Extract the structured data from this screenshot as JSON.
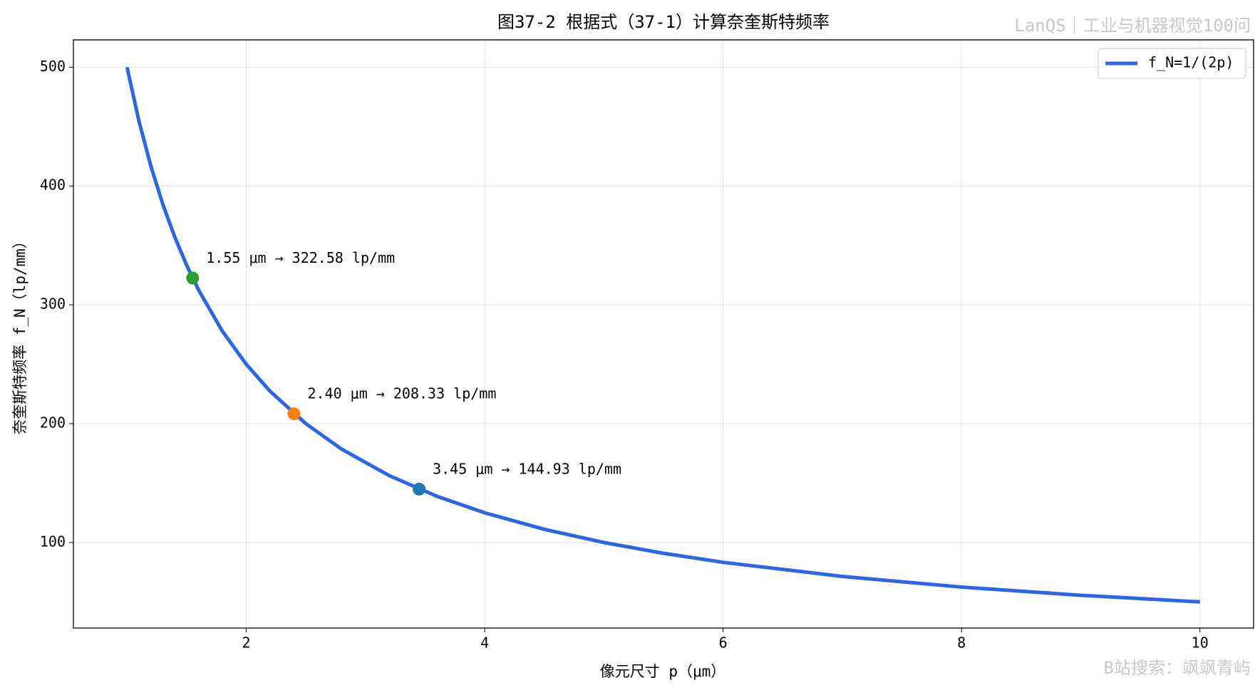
{
  "chart_data": {
    "type": "line",
    "title": "图37-2 根据式（37-1）计算奈奎斯特频率",
    "xlabel": "像元尺寸 p（μm）",
    "ylabel": "奈奎斯特频率 f_N（lp/mm）",
    "xlim": [
      0.55,
      10.45
    ],
    "ylim": [
      28,
      523
    ],
    "xticks": [
      2,
      4,
      6,
      8,
      10
    ],
    "yticks": [
      100,
      200,
      300,
      400,
      500
    ],
    "grid": true,
    "legend": "upper right",
    "series": [
      {
        "name": "f_N=1/(2p)",
        "color": "#2a66e6",
        "x": [
          1,
          1.1,
          1.2,
          1.3,
          1.4,
          1.5,
          1.6,
          1.8,
          2,
          2.2,
          2.5,
          2.8,
          3.2,
          3.6,
          4,
          4.5,
          5,
          5.5,
          6,
          7,
          8,
          9,
          10
        ],
        "values": [
          500,
          454.55,
          416.67,
          384.62,
          357.14,
          333.33,
          312.5,
          277.78,
          250,
          227.27,
          200,
          178.57,
          156.25,
          138.89,
          125,
          111.11,
          100,
          90.91,
          83.33,
          71.43,
          62.5,
          55.56,
          50
        ]
      }
    ],
    "points": {
      "x": [
        1.55,
        2.4,
        3.45
      ],
      "values": [
        322.58,
        208.33,
        144.93
      ],
      "colors": [
        "#2ca02c",
        "#ff7f0e",
        "#1f77b4"
      ],
      "annotations": [
        "1.55 μm → 322.58 lp/mm",
        "2.40 μm → 208.33 lp/mm",
        "3.45 μm → 144.93 lp/mm"
      ]
    },
    "watermarks": [
      "LanQS｜工业与机器视觉100问",
      "B站搜索：飒飒青屿"
    ]
  }
}
